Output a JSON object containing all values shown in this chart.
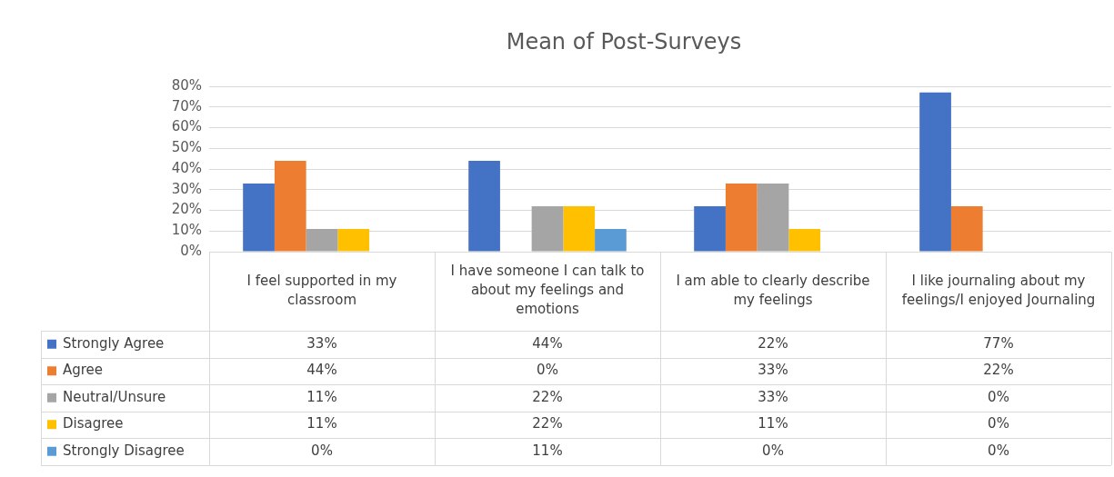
{
  "chart_data": {
    "type": "bar",
    "title": "Mean of Post-Surveys",
    "categories": [
      "I feel supported in my classroom",
      "I have someone I can talk to about my feelings and emotions",
      "I am able to clearly describe my feelings",
      "I like journaling about my feelings/I enjoyed Journaling"
    ],
    "series": [
      {
        "name": "Strongly Agree",
        "color": "#4472c4",
        "values": [
          33,
          44,
          22,
          77
        ],
        "value_labels": [
          "33%",
          "44%",
          "22%",
          "77%"
        ]
      },
      {
        "name": "Agree",
        "color": "#ed7d31",
        "values": [
          44,
          0,
          33,
          22
        ],
        "value_labels": [
          "44%",
          "0%",
          "33%",
          "22%"
        ]
      },
      {
        "name": "Neutral/Unsure",
        "color": "#a5a5a5",
        "values": [
          11,
          22,
          33,
          0
        ],
        "value_labels": [
          "11%",
          "22%",
          "33%",
          "0%"
        ]
      },
      {
        "name": "Disagree",
        "color": "#ffc000",
        "values": [
          11,
          22,
          11,
          0
        ],
        "value_labels": [
          "11%",
          "22%",
          "11%",
          "0%"
        ]
      },
      {
        "name": "Strongly Disagree",
        "color": "#5b9bd5",
        "values": [
          0,
          11,
          0,
          0
        ],
        "value_labels": [
          "0%",
          "11%",
          "0%",
          "0%"
        ]
      }
    ],
    "ylim": [
      0,
      80
    ],
    "yticks": [
      {
        "value": 0,
        "label": "0%"
      },
      {
        "value": 10,
        "label": "10%"
      },
      {
        "value": 20,
        "label": "20%"
      },
      {
        "value": 30,
        "label": "30%"
      },
      {
        "value": 40,
        "label": "40%"
      },
      {
        "value": 50,
        "label": "50%"
      },
      {
        "value": 60,
        "label": "60%"
      },
      {
        "value": 70,
        "label": "70%"
      },
      {
        "value": 80,
        "label": "80%"
      }
    ],
    "grid": "y",
    "legend": "bottom"
  }
}
